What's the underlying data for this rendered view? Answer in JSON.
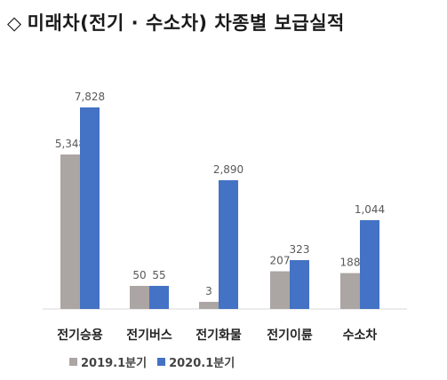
{
  "header": {
    "icon": "diamond-outline-icon",
    "title": "미래차(전기 · 수소차) 차종별 보급실적"
  },
  "colors": {
    "series1": "#ABA5A3",
    "series2": "#4472C4",
    "axis": "#D9D9D9",
    "label": "#595959"
  },
  "chart_data": {
    "type": "bar",
    "categories": [
      "전기승용",
      "전기버스",
      "전기화물",
      "전기이륜",
      "수소차"
    ],
    "series": [
      {
        "name": "2019.1분기",
        "values": [
          5348,
          50,
          3,
          207,
          188
        ]
      },
      {
        "name": "2020.1분기",
        "values": [
          7828,
          55,
          2890,
          323,
          1044
        ]
      }
    ],
    "value_labels": [
      [
        "5,348",
        "50",
        "3",
        "207",
        "188"
      ],
      [
        "7,828",
        "55",
        "2,890",
        "323",
        "1,044"
      ]
    ],
    "legend_position": "bottom-left",
    "grid": false
  }
}
